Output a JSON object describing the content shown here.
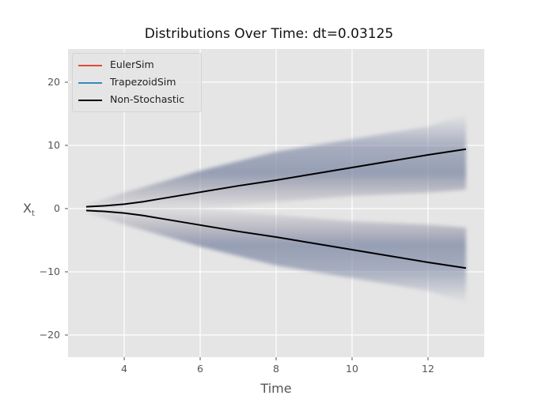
{
  "chart_data": {
    "type": "line",
    "title": "Distributions Over Time: dt=0.03125",
    "xlabel": "Time",
    "ylabel": "X_t",
    "xlim": [
      2.52,
      13.48
    ],
    "ylim": [
      -23.5,
      25.25
    ],
    "xticks": [
      4,
      6,
      8,
      10,
      12
    ],
    "xtick_labels": [
      "4",
      "6",
      "8",
      "10",
      "12"
    ],
    "yticks": [
      20,
      10,
      0,
      -10,
      -20
    ],
    "ytick_labels": [
      "20",
      "10",
      "0",
      "−10",
      "−20"
    ],
    "grid": true,
    "style": "ggplot",
    "legend_position": "upper left",
    "legend": [
      {
        "label": "EulerSim",
        "color": "#e24a33"
      },
      {
        "label": "TrapezoidSim",
        "color": "#348abd"
      },
      {
        "label": "Non-Stochastic",
        "color": "#000000"
      }
    ],
    "series": [
      {
        "name": "Non-Stochastic (upper)",
        "color": "#000000",
        "x": [
          3,
          3.5,
          4,
          4.5,
          5,
          6,
          7,
          8,
          9,
          10,
          11,
          12,
          13
        ],
        "y": [
          0.3,
          0.45,
          0.7,
          1.1,
          1.6,
          2.6,
          3.6,
          4.5,
          5.5,
          6.5,
          7.5,
          8.5,
          9.4
        ]
      },
      {
        "name": "Non-Stochastic (lower)",
        "color": "#000000",
        "x": [
          3,
          3.5,
          4,
          4.5,
          5,
          6,
          7,
          8,
          9,
          10,
          11,
          12,
          13
        ],
        "y": [
          -0.3,
          -0.45,
          -0.7,
          -1.1,
          -1.6,
          -2.6,
          -3.6,
          -4.5,
          -5.5,
          -6.5,
          -7.5,
          -8.5,
          -9.4
        ]
      },
      {
        "name": "Simulated distribution band (upper)",
        "color": "#7b86a3",
        "x": [
          3,
          4,
          6,
          8,
          10,
          12,
          13
        ],
        "y_low": [
          0,
          -0.5,
          0,
          1,
          2,
          2.5,
          3
        ],
        "y_high": [
          0.6,
          2.5,
          6,
          9,
          11,
          13,
          15
        ]
      },
      {
        "name": "Simulated distribution band (lower)",
        "color": "#7b86a3",
        "x": [
          3,
          4,
          6,
          8,
          10,
          12,
          13
        ],
        "y_low": [
          -0.6,
          -2.5,
          -6,
          -9,
          -11,
          -13,
          -15
        ],
        "y_high": [
          0,
          0.5,
          0,
          -1,
          -2,
          -2.5,
          -3
        ]
      }
    ]
  },
  "legend": {
    "items": [
      {
        "label": "EulerSim",
        "color": "#e24a33"
      },
      {
        "label": "TrapezoidSim",
        "color": "#348abd"
      },
      {
        "label": "Non-Stochastic",
        "color": "#000000"
      }
    ]
  }
}
